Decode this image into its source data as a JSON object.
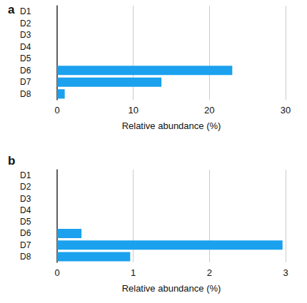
{
  "chart_data": [
    {
      "type": "bar",
      "title": "a",
      "orientation": "horizontal",
      "categories": [
        "D1",
        "D2",
        "D3",
        "D4",
        "D5",
        "D6",
        "D7",
        "D8"
      ],
      "values": [
        0,
        0,
        0,
        0,
        0,
        23,
        13.7,
        1
      ],
      "color": "#1ba1ee",
      "xlabel": "Relative abundance (%)",
      "xlim": [
        0,
        30
      ],
      "xticks": [
        0,
        10,
        20,
        30
      ],
      "grid": true
    },
    {
      "type": "bar",
      "title": "b",
      "orientation": "horizontal",
      "categories": [
        "D1",
        "D2",
        "D3",
        "D4",
        "D5",
        "D6",
        "D7",
        "D8"
      ],
      "values": [
        0,
        0,
        0,
        0,
        0,
        0.32,
        2.96,
        0.96
      ],
      "color": "#1ba1ee",
      "xlabel": "Relative abundance (%)",
      "xlim": [
        0,
        3
      ],
      "xticks": [
        0,
        1,
        2,
        3
      ],
      "grid": true
    }
  ]
}
